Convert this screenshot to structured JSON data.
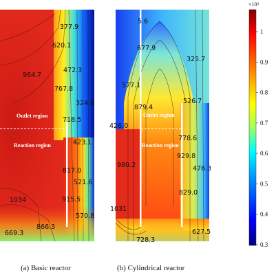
{
  "panel_a": {
    "caption": "(a) Basic reactor",
    "outlet_label": "Outlet region",
    "reaction_label": "Reaction region",
    "contour_labels": [
      "377.9",
      "620.1",
      "964.7",
      "472.3",
      "767.8",
      "324.6",
      "718.5",
      "423.1",
      "817.0",
      "521.6",
      "1034",
      "915.5",
      "570.8",
      "866.3",
      "669.3"
    ]
  },
  "panel_b": {
    "caption": "(b) Cylindrical reactor",
    "outlet_label": "Outlet region",
    "reaction_label": "Reaction region",
    "contour_labels": [
      "5.6",
      "677.9",
      "325.7",
      "577.1",
      "526.7",
      "879.4",
      "426.0",
      "778.6",
      "980.2",
      "929.8",
      "476.3",
      "829.0",
      "1031",
      "627.5",
      "728.3"
    ]
  },
  "colorbar": {
    "multiplier": "×10³",
    "ticks": [
      "1",
      "0.9",
      "0.8",
      "0.7",
      "0.6",
      "0.5",
      "0.4",
      "0.3"
    ],
    "colormap": [
      "#000080",
      "#0000ff",
      "#00a0ff",
      "#00ffff",
      "#a0ff60",
      "#ffff00",
      "#ff8000",
      "#ff0000",
      "#800000"
    ]
  }
}
